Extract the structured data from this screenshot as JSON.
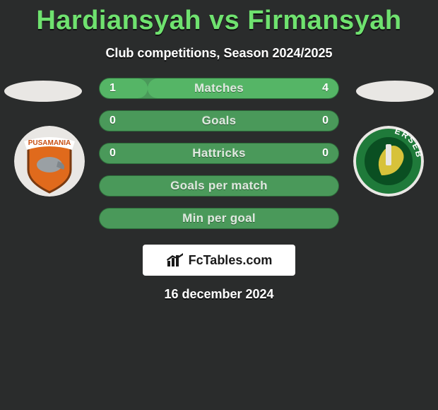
{
  "background_color": "#2a2c2c",
  "title": {
    "text": "Hardiansyah vs Firmansyah",
    "color": "#6fe26f",
    "fontsize": 38
  },
  "subtitle": {
    "text": "Club competitions, Season 2024/2025",
    "color": "#ffffff",
    "fontsize": 18
  },
  "photo_placeholder_color": "#e9e7e4",
  "crest_left": {
    "bg": "#e9e7e4",
    "shield_fill": "#e06a1c",
    "shield_border": "#7a3a10",
    "banner_fill": "#ffffff",
    "banner_text_color": "#c94f12",
    "banner_text": "PUSAMANIA"
  },
  "crest_right": {
    "bg": "#e9e7e4",
    "ring_fill": "#1f7a3a",
    "ring_text_color": "#ffffff",
    "ring_text": "ERSEBA",
    "inner_fill": "#0a4f22",
    "accent": "#d7c23a"
  },
  "bars": {
    "track_color": "#4a995a",
    "track_border": "#2d6b3a",
    "fill_color": "#55b566",
    "label_color": "#dfe9df",
    "value_color": "#ffffff",
    "rows": [
      {
        "label": "Matches",
        "left": "1",
        "right": "4",
        "left_pct": 20,
        "right_pct": 80
      },
      {
        "label": "Goals",
        "left": "0",
        "right": "0",
        "left_pct": 0,
        "right_pct": 0
      },
      {
        "label": "Hattricks",
        "left": "0",
        "right": "0",
        "left_pct": 0,
        "right_pct": 0
      },
      {
        "label": "Goals per match",
        "left": "",
        "right": "",
        "left_pct": 0,
        "right_pct": 0
      },
      {
        "label": "Min per goal",
        "left": "",
        "right": "",
        "left_pct": 0,
        "right_pct": 0
      }
    ]
  },
  "branding": {
    "box_bg": "#ffffff",
    "text": "FcTables.com",
    "text_color": "#1a1a1a",
    "icon_color": "#1a1a1a"
  },
  "date": {
    "text": "16 december 2024",
    "color": "#ffffff"
  }
}
